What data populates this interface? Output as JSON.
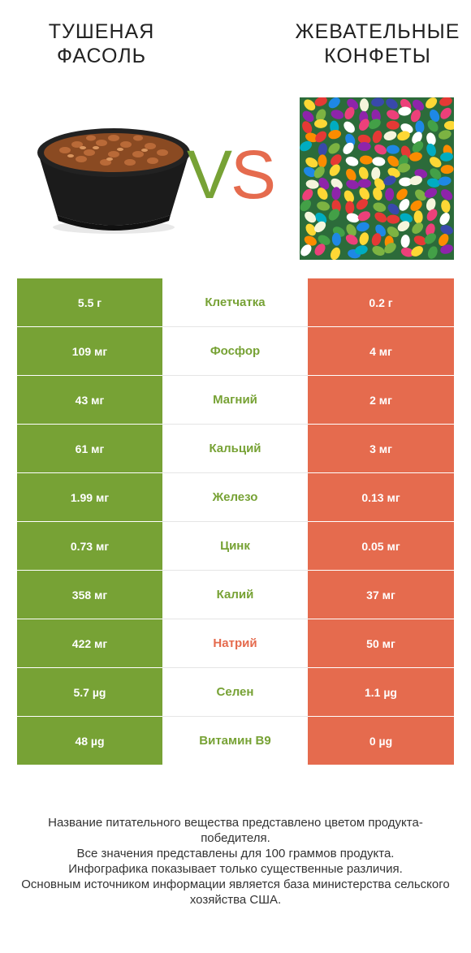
{
  "header": {
    "left_title": "ТУШЕНАЯ ФАСОЛЬ",
    "right_title": "ЖЕВАТЕЛЬНЫЕ КОНФЕТЫ",
    "vs_v": "V",
    "vs_s": "S"
  },
  "colors": {
    "winner_left": "#77a235",
    "winner_right": "#e56b4e",
    "left_column": "#77a235",
    "right_column": "#e56b4e"
  },
  "rows": [
    {
      "left": "5.5 г",
      "nutrient": "Клетчатка",
      "right": "0.2 г",
      "winner_color": "#77a235"
    },
    {
      "left": "109 мг",
      "nutrient": "Фосфор",
      "right": "4 мг",
      "winner_color": "#77a235"
    },
    {
      "left": "43 мг",
      "nutrient": "Магний",
      "right": "2 мг",
      "winner_color": "#77a235"
    },
    {
      "left": "61 мг",
      "nutrient": "Кальций",
      "right": "3 мг",
      "winner_color": "#77a235"
    },
    {
      "left": "1.99 мг",
      "nutrient": "Железо",
      "right": "0.13 мг",
      "winner_color": "#77a235"
    },
    {
      "left": "0.73 мг",
      "nutrient": "Цинк",
      "right": "0.05 мг",
      "winner_color": "#77a235"
    },
    {
      "left": "358 мг",
      "nutrient": "Калий",
      "right": "37 мг",
      "winner_color": "#77a235"
    },
    {
      "left": "422 мг",
      "nutrient": "Натрий",
      "right": "50 мг",
      "winner_color": "#e56b4e"
    },
    {
      "left": "5.7 µg",
      "nutrient": "Селен",
      "right": "1.1 µg",
      "winner_color": "#77a235"
    },
    {
      "left": "48 µg",
      "nutrient": "Витамин B9",
      "right": "0 µg",
      "winner_color": "#77a235"
    }
  ],
  "footer": {
    "line1": "Название питательного вещества представлено цветом продукта-победителя.",
    "line2": "Все значения представлены для 100 граммов продукта.",
    "line3": "Инфографика показывает только существенные различия.",
    "line4": "Основным источником информации является база министерства сельского хозяйства США."
  }
}
